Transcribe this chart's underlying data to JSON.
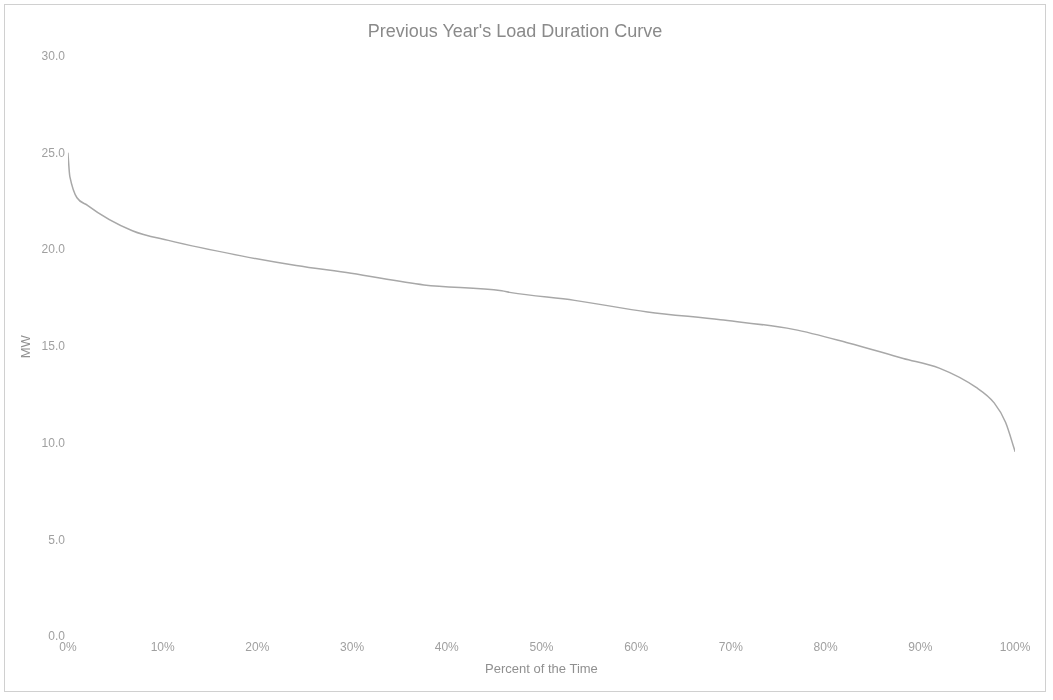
{
  "chart_data": {
    "type": "line",
    "title": "Previous Year's Load Duration Curve",
    "xlabel": "Percent of the Time",
    "ylabel": "MW",
    "x": [
      0,
      0.2,
      2.1,
      6.8,
      10.6,
      18.3,
      24.1,
      29.9,
      37.6,
      45.8,
      46.8,
      53.5,
      61.2,
      68.9,
      76.6,
      82.4,
      88.2,
      92.0,
      95.9,
      97.8,
      99.0,
      100
    ],
    "series": [
      {
        "color": "#a8a8a8",
        "values": [
          25.0,
          23.8,
          22.3,
          21.0,
          20.5,
          19.7,
          19.2,
          18.8,
          18.2,
          17.9,
          17.8,
          17.4,
          16.8,
          16.4,
          15.9,
          15.2,
          14.4,
          13.9,
          12.9,
          12.1,
          11.1,
          9.6
        ]
      }
    ],
    "xlim": [
      0,
      100
    ],
    "xticks": [
      {
        "value": 0,
        "label": "0%"
      },
      {
        "value": 10,
        "label": "10%"
      },
      {
        "value": 20,
        "label": "20%"
      },
      {
        "value": 30,
        "label": "30%"
      },
      {
        "value": 40,
        "label": "40%"
      },
      {
        "value": 50,
        "label": "50%"
      },
      {
        "value": 60,
        "label": "60%"
      },
      {
        "value": 70,
        "label": "70%"
      },
      {
        "value": 80,
        "label": "80%"
      },
      {
        "value": 90,
        "label": "90%"
      },
      {
        "value": 100,
        "label": "100%"
      }
    ],
    "ylim": [
      0,
      30
    ],
    "yticks": [
      {
        "value": 0,
        "label": "0.0"
      },
      {
        "value": 5,
        "label": "5.0"
      },
      {
        "value": 10,
        "label": "10.0"
      },
      {
        "value": 15,
        "label": "15.0"
      },
      {
        "value": 20,
        "label": "20.0"
      },
      {
        "value": 25,
        "label": "25.0"
      },
      {
        "value": 30,
        "label": "30.0"
      }
    ],
    "grid": false,
    "legend": false,
    "marker": "none",
    "line_style": "solid"
  }
}
